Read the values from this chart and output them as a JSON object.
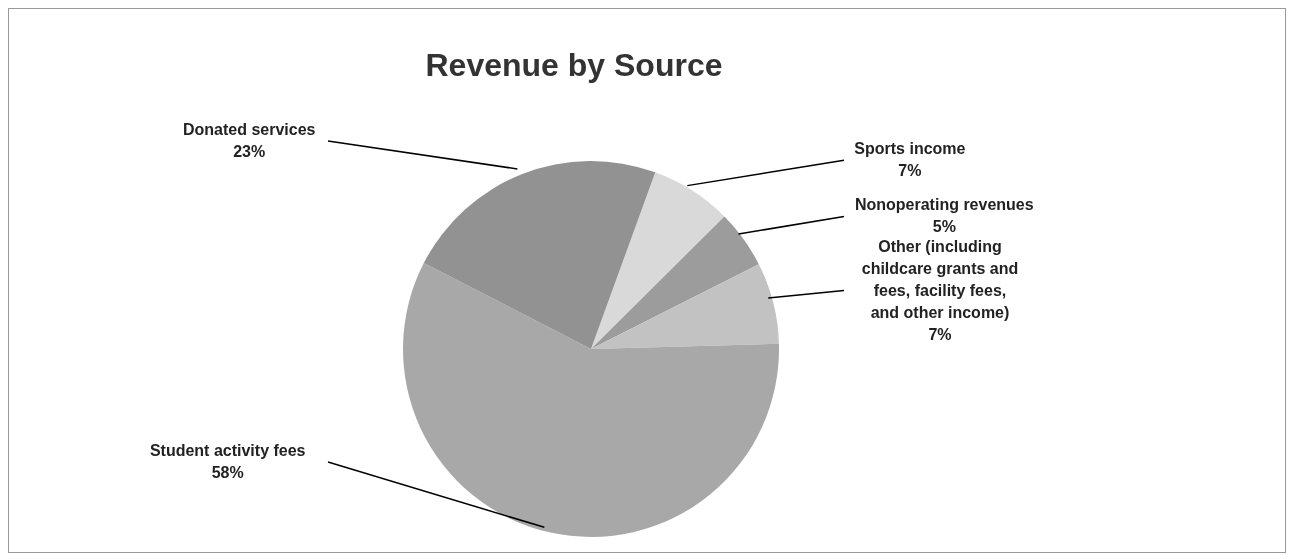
{
  "chart_data": {
    "type": "pie",
    "title": "Revenue by Source",
    "categories": [
      "Sports income",
      "Nonoperating revenues",
      "Other (including childcare grants and fees, facility fees, and other income)",
      "Student activity fees",
      "Donated services"
    ],
    "values": [
      7,
      5,
      7,
      58,
      23
    ],
    "colors": [
      "#d9d9d9",
      "#9c9c9c",
      "#c2c2c2",
      "#a8a8a8",
      "#929292"
    ],
    "value_labels": [
      "7%",
      "5%",
      "7%",
      "58%",
      "23%"
    ],
    "legend": false
  }
}
